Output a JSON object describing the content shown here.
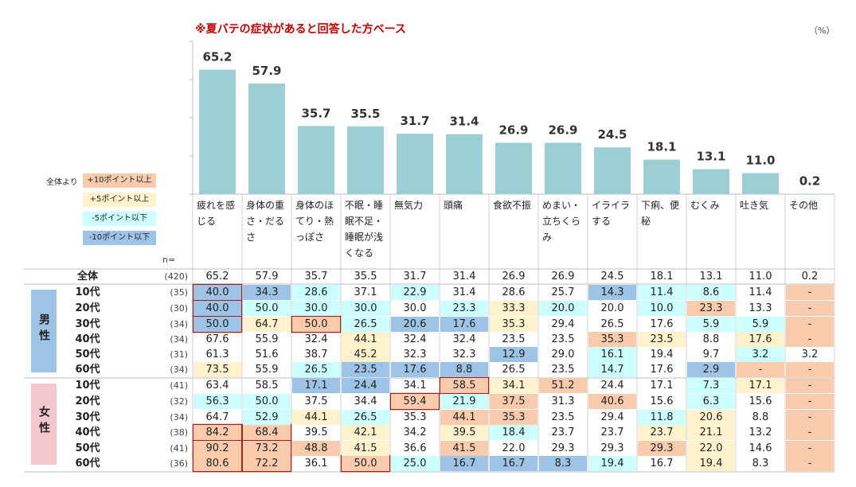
{
  "title": "※夏バテの症状があると回答した方ベース",
  "unit": "（%）",
  "n_label": "n=",
  "legend": {
    "label": "全体より",
    "items": [
      {
        "label": "+10ポイント以上",
        "color": "#f8cbad"
      },
      {
        "label": "+5ポイント以上",
        "color": "#fff2cc"
      },
      {
        "label": "-5ポイント以下",
        "color": "#ccffff"
      },
      {
        "label": "-10ポイント以下",
        "color": "#9dc3e6"
      }
    ]
  },
  "groups": {
    "male": "男性",
    "female": "女性"
  },
  "colors": {
    "bar": "#9ccfd4",
    "highlight_border": "#a01f1f",
    "male_bg": "#9dc3e6",
    "female_bg": "#f4c7ce"
  },
  "chart_data": {
    "type": "bar",
    "categories": [
      "疲れを感じる",
      "身体の重さ・だるさ",
      "身体のほてり・熱っぽさ",
      "不眠・睡眠不足・睡眠が浅くなる",
      "無気力",
      "頭痛",
      "食欲不振",
      "めまい・立ちくらみ",
      "イライラする",
      "下痢、便秘",
      "むくみ",
      "吐き気",
      "その他"
    ],
    "values": [
      65.2,
      57.9,
      35.7,
      35.5,
      31.7,
      31.4,
      26.9,
      26.9,
      24.5,
      18.1,
      13.1,
      11.0,
      0.2
    ],
    "value_labels": [
      "65.2",
      "57.9",
      "35.7",
      "35.5",
      "31.7",
      "31.4",
      "26.9",
      "26.9",
      "24.5",
      "18.1",
      "13.1",
      "11.0",
      "0.2"
    ],
    "ylim": [
      0,
      80
    ]
  },
  "table": {
    "rows": [
      {
        "label": "全体",
        "n": "(420)",
        "values": [
          "65.2",
          "57.9",
          "35.7",
          "35.5",
          "31.7",
          "31.4",
          "26.9",
          "26.9",
          "24.5",
          "18.1",
          "13.1",
          "11.0",
          "0.2"
        ],
        "colors": [
          "",
          "",
          "",
          "",
          "",
          "",
          "",
          "",
          "",
          "",
          "",
          "",
          ""
        ],
        "highlight": []
      },
      {
        "label": "10代",
        "n": "(35)",
        "values": [
          "40.0",
          "34.3",
          "28.6",
          "37.1",
          "22.9",
          "31.4",
          "28.6",
          "25.7",
          "14.3",
          "11.4",
          "8.6",
          "11.4",
          "-"
        ],
        "colors": [
          "b",
          "b",
          "c",
          "",
          "c",
          "",
          "",
          "",
          "b",
          "c",
          "c",
          "",
          "o"
        ],
        "highlight": [
          0
        ]
      },
      {
        "label": "20代",
        "n": "(30)",
        "values": [
          "40.0",
          "50.0",
          "30.0",
          "30.0",
          "30.0",
          "23.3",
          "33.3",
          "20.0",
          "20.0",
          "10.0",
          "23.3",
          "13.3",
          "-"
        ],
        "colors": [
          "b",
          "c",
          "c",
          "c",
          "",
          "c",
          "y",
          "c",
          "",
          "c",
          "o",
          "",
          "o"
        ],
        "highlight": [
          0
        ]
      },
      {
        "label": "30代",
        "n": "(34)",
        "values": [
          "50.0",
          "64.7",
          "50.0",
          "26.5",
          "20.6",
          "17.6",
          "35.3",
          "29.4",
          "26.5",
          "17.6",
          "5.9",
          "5.9",
          "-"
        ],
        "colors": [
          "b",
          "y",
          "o",
          "c",
          "b",
          "b",
          "y",
          "",
          "",
          "",
          "c",
          "c",
          "o"
        ],
        "highlight": [
          0,
          2
        ]
      },
      {
        "label": "40代",
        "n": "(34)",
        "values": [
          "67.6",
          "55.9",
          "32.4",
          "44.1",
          "32.4",
          "32.4",
          "23.5",
          "23.5",
          "35.3",
          "23.5",
          "8.8",
          "17.6",
          "-"
        ],
        "colors": [
          "",
          "",
          "",
          "y",
          "",
          "",
          "",
          "",
          "o",
          "y",
          "",
          "y",
          "o"
        ],
        "highlight": []
      },
      {
        "label": "50代",
        "n": "(31)",
        "values": [
          "61.3",
          "51.6",
          "38.7",
          "45.2",
          "32.3",
          "32.3",
          "12.9",
          "29.0",
          "16.1",
          "19.4",
          "9.7",
          "3.2",
          "3.2"
        ],
        "colors": [
          "",
          "",
          "",
          "y",
          "",
          "",
          "b",
          "",
          "c",
          "",
          "",
          "c",
          ""
        ],
        "highlight": []
      },
      {
        "label": "60代",
        "n": "(34)",
        "values": [
          "73.5",
          "55.9",
          "26.5",
          "23.5",
          "17.6",
          "8.8",
          "26.5",
          "23.5",
          "14.7",
          "17.6",
          "2.9",
          "-",
          "-"
        ],
        "colors": [
          "y",
          "",
          "c",
          "b",
          "b",
          "b",
          "",
          "",
          "c",
          "",
          "b",
          "o",
          "o"
        ],
        "highlight": []
      },
      {
        "label": "10代",
        "n": "(41)",
        "values": [
          "63.4",
          "58.5",
          "17.1",
          "24.4",
          "34.1",
          "58.5",
          "34.1",
          "51.2",
          "24.4",
          "17.1",
          "7.3",
          "17.1",
          "-"
        ],
        "colors": [
          "",
          "",
          "b",
          "b",
          "",
          "o",
          "y",
          "o",
          "",
          "",
          "c",
          "y",
          "o"
        ],
        "highlight": [
          5
        ]
      },
      {
        "label": "20代",
        "n": "(32)",
        "values": [
          "56.3",
          "50.0",
          "37.5",
          "34.4",
          "59.4",
          "21.9",
          "37.5",
          "31.3",
          "40.6",
          "15.6",
          "6.3",
          "15.6",
          "-"
        ],
        "colors": [
          "c",
          "c",
          "",
          "",
          "o",
          "c",
          "o",
          "",
          "o",
          "",
          "c",
          "",
          "o"
        ],
        "highlight": [
          4
        ]
      },
      {
        "label": "30代",
        "n": "(34)",
        "values": [
          "64.7",
          "52.9",
          "44.1",
          "26.5",
          "35.3",
          "44.1",
          "35.3",
          "23.5",
          "29.4",
          "11.8",
          "20.6",
          "8.8",
          "-"
        ],
        "colors": [
          "",
          "c",
          "y",
          "c",
          "",
          "o",
          "o",
          "",
          "",
          "c",
          "y",
          "",
          "o"
        ],
        "highlight": []
      },
      {
        "label": "40代",
        "n": "(38)",
        "values": [
          "84.2",
          "68.4",
          "39.5",
          "42.1",
          "34.2",
          "39.5",
          "18.4",
          "23.7",
          "23.7",
          "23.7",
          "21.1",
          "13.2",
          "-"
        ],
        "colors": [
          "o",
          "o",
          "",
          "y",
          "",
          "y",
          "c",
          "",
          "",
          "y",
          "y",
          "",
          "o"
        ],
        "highlight": [
          0,
          1
        ]
      },
      {
        "label": "50代",
        "n": "(41)",
        "values": [
          "90.2",
          "73.2",
          "48.8",
          "41.5",
          "36.6",
          "41.5",
          "22.0",
          "29.3",
          "29.3",
          "29.3",
          "22.0",
          "14.6",
          "-"
        ],
        "colors": [
          "o",
          "o",
          "o",
          "y",
          "",
          "o",
          "",
          "",
          "",
          "o",
          "y",
          "",
          "o"
        ],
        "highlight": [
          0,
          1
        ]
      },
      {
        "label": "60代",
        "n": "(36)",
        "values": [
          "80.6",
          "72.2",
          "36.1",
          "50.0",
          "25.0",
          "16.7",
          "16.7",
          "8.3",
          "19.4",
          "16.7",
          "19.4",
          "8.3",
          "-"
        ],
        "colors": [
          "o",
          "o",
          "",
          "o",
          "c",
          "b",
          "b",
          "b",
          "c",
          "",
          "y",
          "",
          "o"
        ],
        "highlight": [
          0,
          1,
          3
        ]
      }
    ]
  }
}
